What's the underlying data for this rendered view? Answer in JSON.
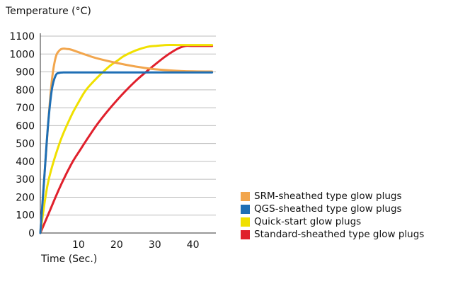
{
  "chart_data": {
    "type": "line",
    "title": "",
    "ylabel": "Temperature (°C)",
    "xlabel": "Time (Sec.)",
    "xlim": [
      0,
      46
    ],
    "ylim": [
      0,
      1100
    ],
    "x_ticks": [
      10,
      20,
      30,
      40
    ],
    "y_ticks": [
      0,
      100,
      200,
      300,
      400,
      500,
      600,
      700,
      800,
      900,
      1000,
      1100
    ],
    "grid": "horizontal",
    "legend_position": "right",
    "series": [
      {
        "name": "SRM-sheathed type glow plugs",
        "color": "#f2a64d",
        "x": [
          0,
          1,
          2,
          3,
          4,
          5,
          6,
          7,
          8,
          10,
          12,
          15,
          20,
          25,
          30,
          35,
          40,
          45
        ],
        "y": [
          0,
          300,
          600,
          850,
          980,
          1020,
          1030,
          1028,
          1025,
          1010,
          995,
          975,
          950,
          930,
          915,
          907,
          903,
          902
        ]
      },
      {
        "name": "QGS-sheathed type glow plugs",
        "color": "#1f6fb5",
        "x": [
          0,
          1,
          2,
          3,
          4,
          5,
          6,
          7,
          10,
          20,
          30,
          40,
          45
        ],
        "y": [
          0,
          300,
          600,
          800,
          880,
          895,
          897,
          897,
          897,
          897,
          897,
          897,
          897
        ]
      },
      {
        "name": "Quick-start glow plugs",
        "color": "#f0e000",
        "x": [
          0,
          2,
          5,
          8,
          10,
          12,
          15,
          18,
          20,
          22,
          25,
          28,
          30,
          33,
          36,
          40,
          45
        ],
        "y": [
          0,
          280,
          500,
          650,
          730,
          800,
          870,
          930,
          960,
          990,
          1020,
          1040,
          1045,
          1050,
          1050,
          1050,
          1050
        ]
      },
      {
        "name": "Standard-sheathed type glow plugs",
        "color": "#e0202c",
        "x": [
          0,
          2,
          5,
          8,
          10,
          15,
          20,
          25,
          30,
          33,
          36,
          38,
          40,
          45
        ],
        "y": [
          0,
          100,
          250,
          380,
          450,
          610,
          740,
          850,
          940,
          990,
          1030,
          1045,
          1045,
          1045
        ]
      }
    ]
  }
}
